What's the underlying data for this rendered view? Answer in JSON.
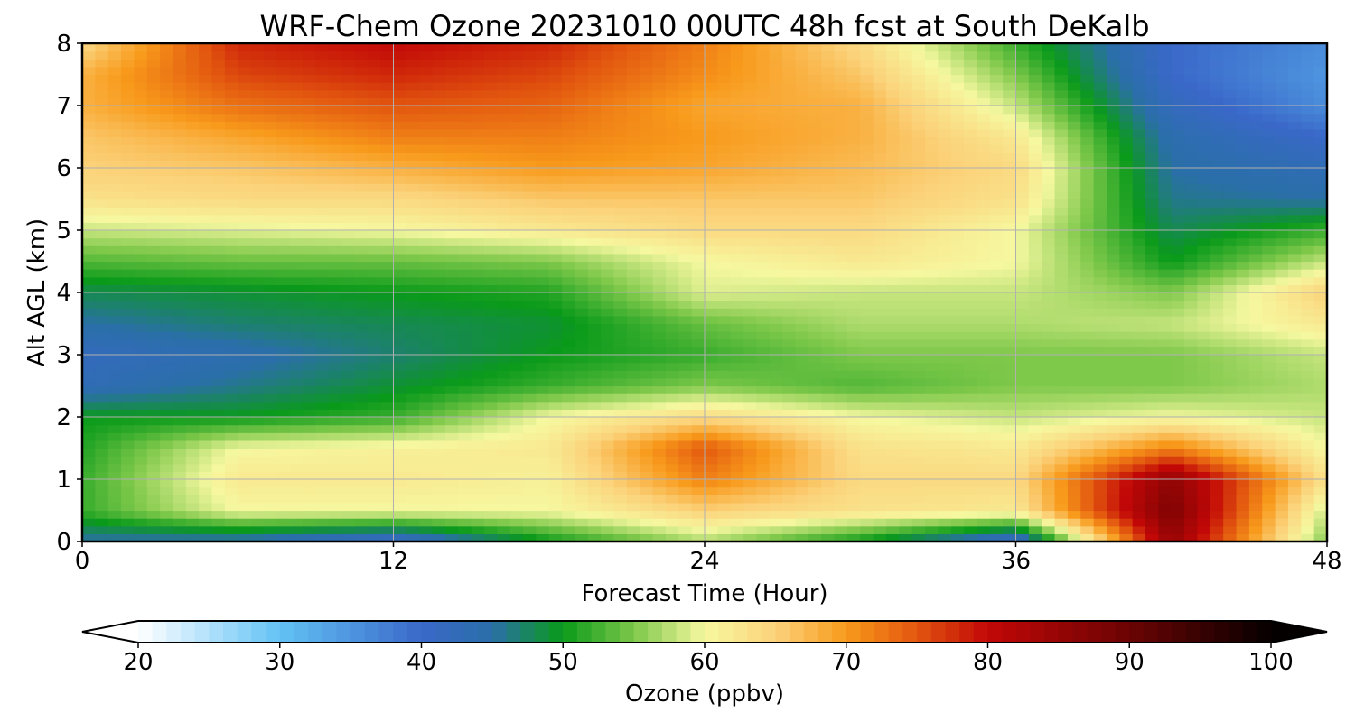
{
  "chart_data": {
    "type": "heatmap",
    "title": "WRF-Chem Ozone  20231010 00UTC 48h fcst at South DeKalb",
    "xlabel": "Forecast Time (Hour)",
    "ylabel": "Alt AGL (km)",
    "xlim": [
      0,
      48
    ],
    "ylim": [
      0,
      8
    ],
    "x_ticks": [
      0,
      12,
      24,
      36,
      48
    ],
    "y_ticks": [
      0,
      1,
      2,
      3,
      4,
      5,
      6,
      7,
      8
    ],
    "grid": true,
    "x": [
      0,
      6,
      12,
      18,
      24,
      30,
      36,
      42,
      48
    ],
    "y": [
      0,
      0.5,
      1,
      1.5,
      2,
      2.5,
      3,
      3.5,
      4,
      4.5,
      5,
      5.5,
      6,
      6.5,
      7,
      7.5,
      8
    ],
    "z": [
      [
        45,
        44,
        40,
        50,
        57,
        50,
        40,
        85,
        55
      ],
      [
        52,
        60,
        60,
        60,
        65,
        63,
        62,
        88,
        58
      ],
      [
        52,
        62,
        62,
        61,
        72,
        64,
        64,
        86,
        63
      ],
      [
        51,
        60,
        61,
        62,
        75,
        63,
        62,
        72,
        60
      ],
      [
        50,
        50,
        52,
        60,
        64,
        60,
        58,
        60,
        58
      ],
      [
        43,
        46,
        49,
        52,
        55,
        53,
        55,
        55,
        57
      ],
      [
        42,
        44,
        47,
        50,
        52,
        55,
        55,
        55,
        58
      ],
      [
        45,
        47,
        48,
        49,
        54,
        57,
        57,
        58,
        62
      ],
      [
        48,
        49,
        50,
        51,
        59,
        58,
        58,
        55,
        65
      ],
      [
        53,
        54,
        54,
        55,
        60,
        62,
        60,
        50,
        58
      ],
      [
        58,
        59,
        60,
        62,
        64,
        64,
        60,
        48,
        52
      ],
      [
        63,
        64,
        64,
        66,
        66,
        66,
        63,
        46,
        45
      ],
      [
        65,
        66,
        68,
        70,
        69,
        67,
        64,
        45,
        43
      ],
      [
        66,
        69,
        72,
        72,
        70,
        68,
        62,
        44,
        40
      ],
      [
        68,
        73,
        75,
        74,
        69,
        68,
        58,
        42,
        36
      ],
      [
        68,
        76,
        78,
        76,
        71,
        66,
        55,
        40,
        35
      ],
      [
        64,
        78,
        80,
        78,
        72,
        64,
        52,
        40,
        36
      ]
    ],
    "colorbar": {
      "label": "Ozone  (ppbv)",
      "min": 20,
      "max": 100,
      "ticks": [
        20,
        30,
        40,
        50,
        60,
        70,
        80,
        90,
        100
      ],
      "extend": "both",
      "colors": [
        {
          "v": 20,
          "c": "#ffffff"
        },
        {
          "v": 30,
          "c": "#63c3f5"
        },
        {
          "v": 40,
          "c": "#3a68c9"
        },
        {
          "v": 45,
          "c": "#2a6fa8"
        },
        {
          "v": 50,
          "c": "#0a9a1a"
        },
        {
          "v": 55,
          "c": "#7ec84a"
        },
        {
          "v": 60,
          "c": "#f6f8a0"
        },
        {
          "v": 65,
          "c": "#fbd27a"
        },
        {
          "v": 70,
          "c": "#f89a1b"
        },
        {
          "v": 75,
          "c": "#e2560f"
        },
        {
          "v": 80,
          "c": "#c20707"
        },
        {
          "v": 90,
          "c": "#6b0303"
        },
        {
          "v": 100,
          "c": "#050000"
        }
      ]
    }
  }
}
